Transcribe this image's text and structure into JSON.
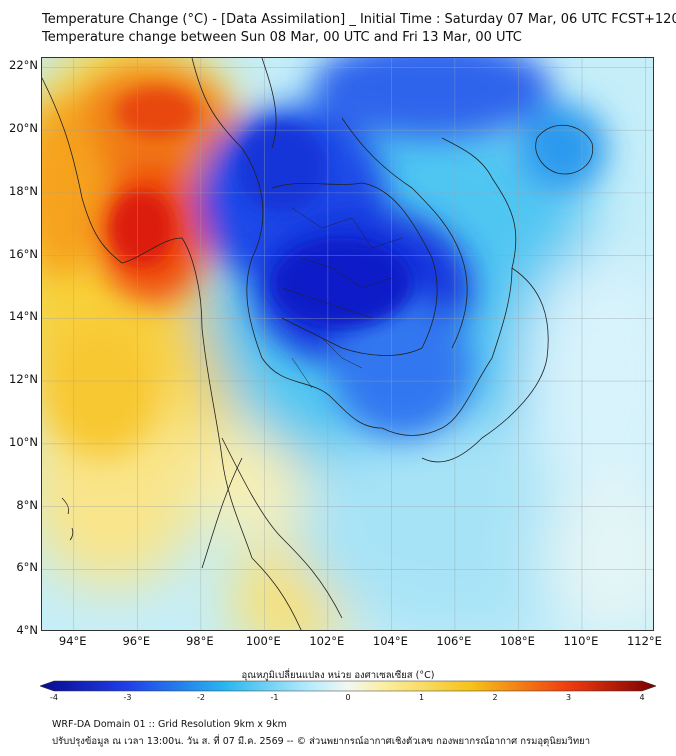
{
  "header": {
    "line1": "Temperature Change (°C) - [Data Assimilation] _ Initial Time : Saturday 07 Mar, 06 UTC FCST+120",
    "line2": "Temperature change between Sun 08 Mar, 00 UTC and Fri 13 Mar, 00 UTC"
  },
  "map": {
    "lat_labels": [
      "22°N",
      "20°N",
      "18°N",
      "16°N",
      "14°N",
      "12°N",
      "10°N",
      "8°N",
      "6°N",
      "4°N"
    ],
    "lon_labels": [
      "94°E",
      "96°E",
      "98°E",
      "100°E",
      "102°E",
      "104°E",
      "106°E",
      "108°E",
      "110°E",
      "112°E"
    ],
    "lat_values": [
      22,
      20,
      18,
      16,
      14,
      12,
      10,
      8,
      6,
      4
    ],
    "lon_values": [
      94,
      96,
      98,
      100,
      102,
      104,
      106,
      108,
      110,
      112
    ],
    "lon_range": [
      93,
      112.3
    ],
    "lat_range": [
      4,
      22.3
    ],
    "anomalies": [
      {
        "name": "warm-myanmar-north",
        "lon": 95.2,
        "lat": 20.8,
        "value": 3.0
      },
      {
        "name": "warm-myanmar-central",
        "lon": 96.4,
        "lat": 17.0,
        "value": 3.3
      },
      {
        "name": "warm-myanmar-west",
        "lon": 94.0,
        "lat": 18.5,
        "value": 1.6
      },
      {
        "name": "cold-laos",
        "lon": 101.5,
        "lat": 19.0,
        "value": -2.8
      },
      {
        "name": "cold-northeast-thailand",
        "lon": 103.0,
        "lat": 15.0,
        "value": -3.2
      },
      {
        "name": "cold-cambodia",
        "lon": 104.0,
        "lat": 12.8,
        "value": -2.0
      },
      {
        "name": "cold-south-china",
        "lon": 104.5,
        "lat": 21.8,
        "value": -2.4
      },
      {
        "name": "cold-hainan",
        "lon": 109.5,
        "lat": 19.5,
        "value": -1.6
      },
      {
        "name": "warm-andaman",
        "lon": 95.0,
        "lat": 11.5,
        "value": 1.0
      },
      {
        "name": "warm-malaysia",
        "lon": 100.8,
        "lat": 5.2,
        "value": 1.0
      },
      {
        "name": "cool-south-sea",
        "lon": 106.0,
        "lat": 7.5,
        "value": -0.8
      }
    ]
  },
  "colorbar": {
    "title": "อุณหภูมิเปลี่ยนแปลง หน่วย องศาเซลเซียส (°C)",
    "min": -4,
    "max": 4,
    "ticks": [
      "-4",
      "-3",
      "-2",
      "-1",
      "0",
      "1",
      "2",
      "3",
      "4"
    ]
  },
  "footer": {
    "line1": "WRF-DA Domain 01 :: Grid Resolution 9km x 9km",
    "line2": "ปรับปรุงข้อมูล ณ เวลา 13:00น. วัน ส. ที่ 07 มี.ค. 2569 -- © ส่วนพยากรณ์อากาศเชิงตัวเลข กองพยากรณ์อากาศ กรมอุตุนิยมวิทยา"
  },
  "colors": {
    "cold_extreme": "#0a0a8c",
    "cold_strong": "#1f3ee8",
    "cold_mid": "#29b6f0",
    "cold_weak": "#b8ecfb",
    "neutral": "#f2f7f2",
    "warm_weak": "#fbeea0",
    "warm_mid": "#f6c21a",
    "warm_strong": "#ef3a10",
    "warm_extreme": "#7a0000"
  }
}
